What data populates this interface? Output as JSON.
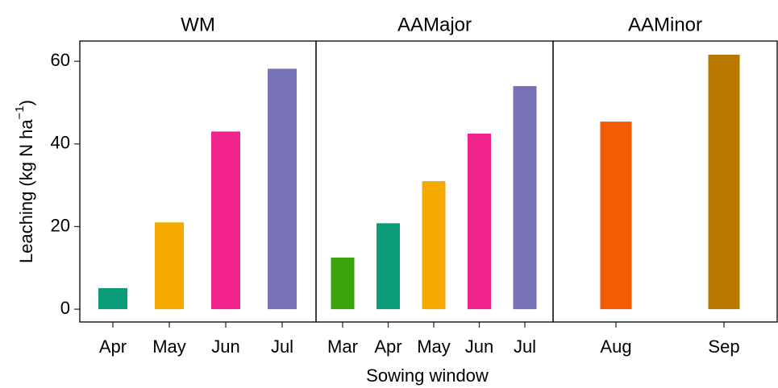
{
  "chart_data": [
    {
      "type": "bar",
      "title": "WM",
      "y_label": "Leaching (kg N ha",
      "y_label_sup": "−1",
      "y_label_end": ")",
      "categories": [
        "Apr",
        "May",
        "Jun",
        "Jul"
      ],
      "values": [
        5.1,
        21,
        43,
        58.2
      ],
      "colors": [
        "#0a9b78",
        "#f5a800",
        "#f0248a",
        "#7771b5"
      ],
      "ylim": [
        -3.1,
        64.9
      ],
      "yticks": [
        0,
        20,
        40,
        60
      ]
    },
    {
      "type": "bar",
      "title": "AAMajor",
      "x_label": "Sowing window",
      "categories": [
        "Mar",
        "Apr",
        "May",
        "Jun",
        "Jul"
      ],
      "values": [
        12.5,
        20.8,
        31,
        42.5,
        54
      ],
      "colors": [
        "#3aa50a",
        "#0a9b78",
        "#f5a800",
        "#f0248a",
        "#7771b5"
      ],
      "ylim": [
        -3.1,
        64.9
      ]
    },
    {
      "type": "bar",
      "title": "AAMinor",
      "categories": [
        "Aug",
        "Sep"
      ],
      "values": [
        45.4,
        61.6
      ],
      "colors": [
        "#f25c05",
        "#b87800"
      ],
      "ylim": [
        -3.1,
        64.9
      ]
    }
  ]
}
